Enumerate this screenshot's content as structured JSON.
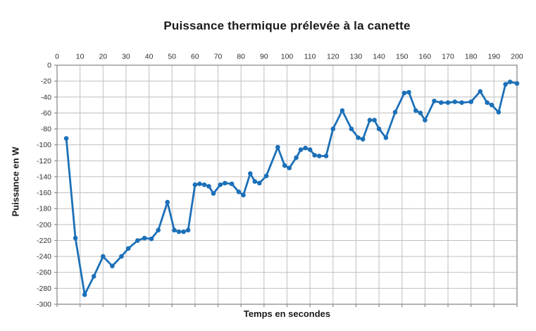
{
  "chart": {
    "title": "Puissance thermique prélevée à la canette",
    "xlabel": "Temps en secondes",
    "ylabel": "Puissance en W"
  },
  "chart_data": {
    "type": "line",
    "title": "Puissance thermique prélevée à la canette",
    "xlabel": "Temps en secondes",
    "ylabel": "Puissance en W",
    "xlim": [
      0,
      200
    ],
    "ylim": [
      -300,
      0
    ],
    "x_ticks": [
      0,
      10,
      20,
      30,
      40,
      50,
      60,
      70,
      80,
      90,
      100,
      110,
      120,
      130,
      140,
      150,
      160,
      170,
      180,
      190,
      200
    ],
    "y_ticks": [
      0,
      -20,
      -40,
      -60,
      -80,
      -100,
      -120,
      -140,
      -160,
      -180,
      -200,
      -220,
      -240,
      -260,
      -280,
      -300
    ],
    "grid": true,
    "legend": false,
    "series": [
      {
        "name": "Puissance thermique",
        "marker": "circle",
        "points": [
          [
            4,
            -92
          ],
          [
            8,
            -217
          ],
          [
            12,
            -288
          ],
          [
            16,
            -265
          ],
          [
            20,
            -240
          ],
          [
            24,
            -252
          ],
          [
            28,
            -240
          ],
          [
            31,
            -230
          ],
          [
            35,
            -220
          ],
          [
            38,
            -217
          ],
          [
            41,
            -218
          ],
          [
            44,
            -207
          ],
          [
            48,
            -172
          ],
          [
            51,
            -207
          ],
          [
            53,
            -209
          ],
          [
            55,
            -209
          ],
          [
            57,
            -207
          ],
          [
            60,
            -150
          ],
          [
            62,
            -149
          ],
          [
            64,
            -150
          ],
          [
            66,
            -152
          ],
          [
            68,
            -161
          ],
          [
            71,
            -150
          ],
          [
            73,
            -148
          ],
          [
            76,
            -149
          ],
          [
            79,
            -159
          ],
          [
            81,
            -163
          ],
          [
            84,
            -136
          ],
          [
            86,
            -146
          ],
          [
            88,
            -148
          ],
          [
            91,
            -139
          ],
          [
            96,
            -103
          ],
          [
            99,
            -126
          ],
          [
            101,
            -129
          ],
          [
            104,
            -116
          ],
          [
            106,
            -106
          ],
          [
            108,
            -104
          ],
          [
            110,
            -106
          ],
          [
            112,
            -113
          ],
          [
            114,
            -114
          ],
          [
            117,
            -114
          ],
          [
            120,
            -80
          ],
          [
            124,
            -57
          ],
          [
            128,
            -80
          ],
          [
            131,
            -91
          ],
          [
            133,
            -93
          ],
          [
            136,
            -69
          ],
          [
            138,
            -69
          ],
          [
            140,
            -80
          ],
          [
            143,
            -91
          ],
          [
            147,
            -59
          ],
          [
            151,
            -35
          ],
          [
            153,
            -34
          ],
          [
            156,
            -57
          ],
          [
            158,
            -60
          ],
          [
            160,
            -69
          ],
          [
            164,
            -45
          ],
          [
            167,
            -47
          ],
          [
            170,
            -47
          ],
          [
            173,
            -46
          ],
          [
            176,
            -47
          ],
          [
            180,
            -46
          ],
          [
            184,
            -33
          ],
          [
            187,
            -47
          ],
          [
            189,
            -50
          ],
          [
            192,
            -59
          ],
          [
            195,
            -24
          ],
          [
            197,
            -21
          ],
          [
            200,
            -23
          ]
        ]
      }
    ]
  },
  "style": {
    "line_color": "#1C70B8",
    "marker_color": "#1C70B8",
    "grid_color": "#BFBFBF",
    "axis_color": "#8C8C8C",
    "tick_text_color": "#303030",
    "title_color": "#1A1A1A",
    "background": "#FFFFFF"
  }
}
